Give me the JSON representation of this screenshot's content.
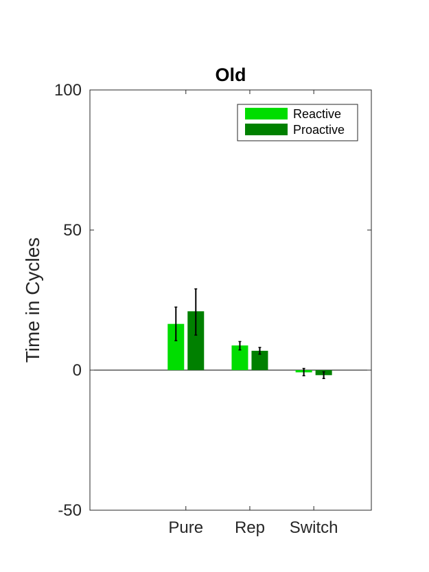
{
  "chart_data": {
    "type": "bar",
    "title": "Old",
    "xlabel": "",
    "ylabel": "Time in Cycles",
    "ylim": [
      -50,
      100
    ],
    "yticks": [
      -50,
      0,
      50,
      100
    ],
    "yticklabels": [
      "-50",
      "0",
      "50",
      "100"
    ],
    "categories": [
      "Pure",
      "Rep",
      "Switch"
    ],
    "grid": false,
    "legend_position": "top-right",
    "series": [
      {
        "name": "Reactive",
        "color": "#00dd00",
        "values": [
          16.5,
          8.8,
          -0.8
        ],
        "error_low": [
          10.5,
          7.2,
          -2.0
        ],
        "error_high": [
          22.5,
          10.2,
          0.6
        ]
      },
      {
        "name": "Proactive",
        "color": "#008000",
        "values": [
          21.0,
          6.9,
          -1.8
        ],
        "error_low": [
          12.5,
          5.7,
          -3.0
        ],
        "error_high": [
          29.0,
          8.1,
          -0.6
        ]
      }
    ]
  }
}
